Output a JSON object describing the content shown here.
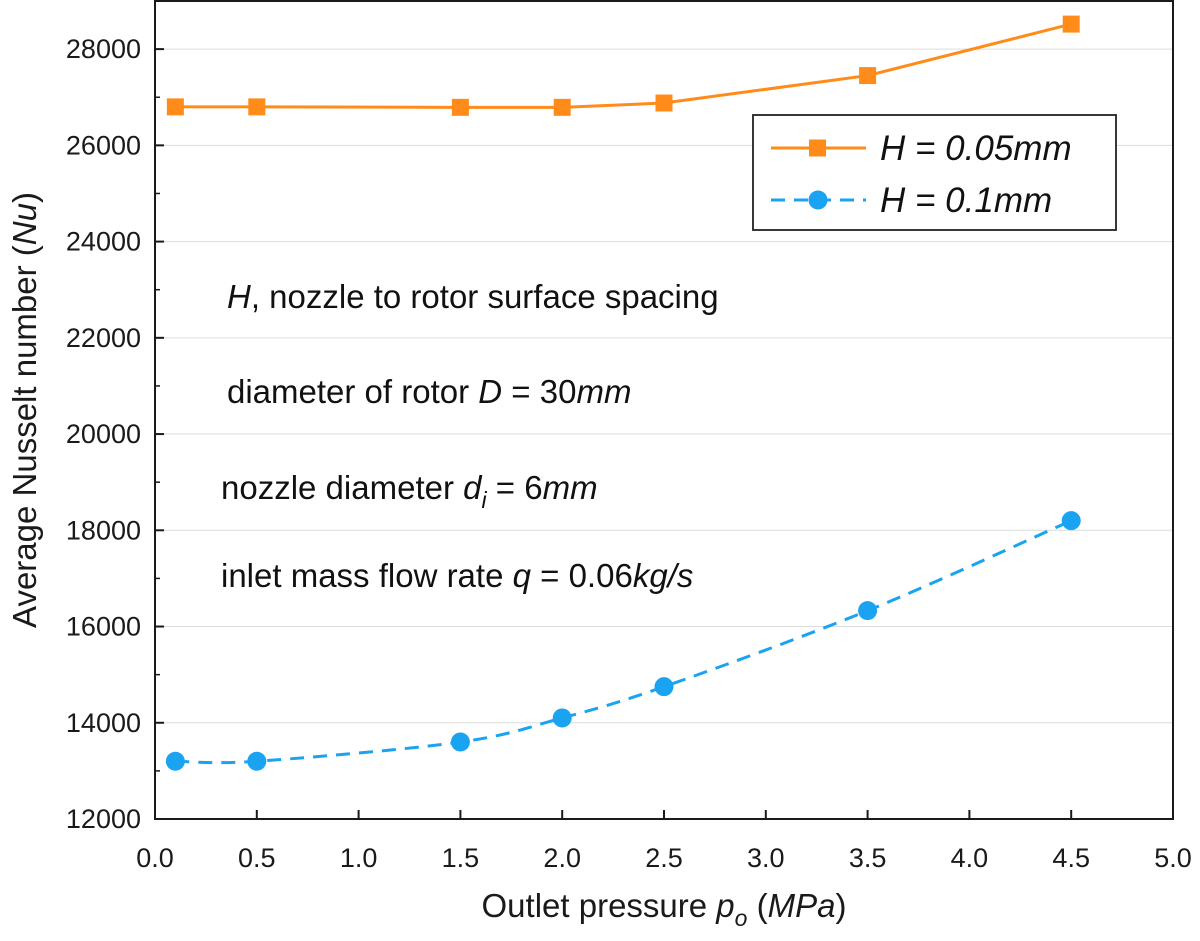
{
  "chart_data": {
    "type": "line",
    "xlabel": {
      "prefix": "Outlet pressure ",
      "var": "p",
      "sub": "o",
      "paren_open": " (",
      "unit": "MPa",
      "paren_close": ")"
    },
    "ylabel": {
      "prefix": "Average Nusselt number (",
      "var": "Nu",
      "suffix": ")"
    },
    "xlim": [
      0.0,
      5.0
    ],
    "ylim": [
      12000,
      29000
    ],
    "xticks": [
      "0.0",
      "0.5",
      "1.0",
      "1.5",
      "2.0",
      "2.5",
      "3.0",
      "3.5",
      "4.0",
      "4.5",
      "5.0"
    ],
    "xtick_values": [
      0.0,
      0.5,
      1.0,
      1.5,
      2.0,
      2.5,
      3.0,
      3.5,
      4.0,
      4.5,
      5.0
    ],
    "yticks": [
      "12000",
      "14000",
      "16000",
      "18000",
      "20000",
      "22000",
      "24000",
      "26000",
      "28000"
    ],
    "ytick_values": [
      12000,
      14000,
      16000,
      18000,
      20000,
      22000,
      24000,
      26000,
      28000
    ],
    "grid": "horizontal-light",
    "legend_position": "upper-right",
    "series": [
      {
        "name": "H = 0.05mm",
        "color": "#ff8c1a",
        "marker": "square",
        "line": "solid",
        "x": [
          0.1,
          0.5,
          1.5,
          2.0,
          2.5,
          3.5,
          4.5
        ],
        "y": [
          26800,
          26800,
          26790,
          26790,
          26880,
          27450,
          28520
        ]
      },
      {
        "name": "H = 0.1mm",
        "color": "#1aa3f0",
        "marker": "circle",
        "line": "dashed",
        "x": [
          0.1,
          0.5,
          1.5,
          2.0,
          2.5,
          3.5,
          4.5
        ],
        "y": [
          13200,
          13200,
          13600,
          14100,
          14750,
          16330,
          18200
        ]
      }
    ],
    "annotations": [
      {
        "id": "spacing",
        "segments": [
          {
            "t": "H",
            "italic": true
          },
          {
            "t": ", nozzle to rotor surface spacing",
            "italic": false
          }
        ]
      },
      {
        "id": "rotor",
        "segments": [
          {
            "t": "diameter of rotor ",
            "italic": false
          },
          {
            "t": "D",
            "italic": true
          },
          {
            "t": " = 30",
            "italic": false
          },
          {
            "t": "mm",
            "italic": true
          }
        ]
      },
      {
        "id": "nozzle",
        "segments": [
          {
            "t": "nozzle diameter ",
            "italic": false
          },
          {
            "t": "d",
            "italic": true
          },
          {
            "t": "i",
            "italic": true,
            "sub": true
          },
          {
            "t": " =  6",
            "italic": false
          },
          {
            "t": "mm",
            "italic": true
          }
        ]
      },
      {
        "id": "flow",
        "segments": [
          {
            "t": "inlet mass flow rate ",
            "italic": false
          },
          {
            "t": "q",
            "italic": true
          },
          {
            "t": " = 0.06",
            "italic": false
          },
          {
            "t": "kg/s",
            "italic": true
          }
        ]
      }
    ]
  }
}
